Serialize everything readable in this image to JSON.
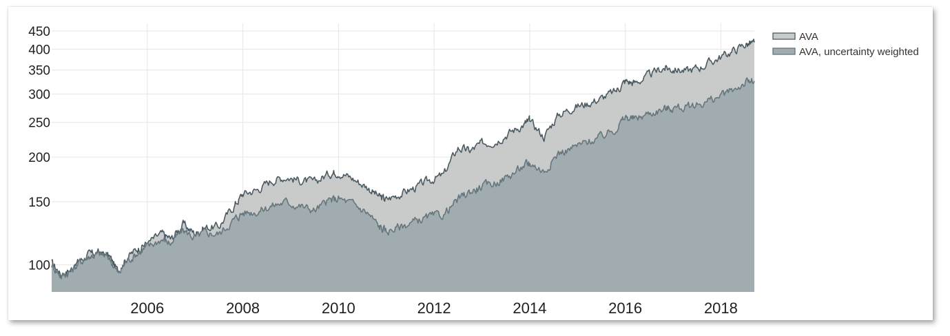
{
  "colors": {
    "ava_fill": "#c9cbcb",
    "ava_line": "#4b5a62",
    "weighted_fill": "#a1acb0",
    "weighted_line": "#66767d",
    "grid": "#e6e6e6"
  },
  "chart_data": {
    "type": "area",
    "title": "",
    "xlabel": "",
    "ylabel": "",
    "y_scale": "log",
    "ylim": [
      84,
      460
    ],
    "xlim": [
      2004.0,
      2018.7
    ],
    "x_ticks": [
      2006,
      2008,
      2010,
      2012,
      2014,
      2016,
      2018
    ],
    "x_tick_labels": [
      "2006",
      "2008",
      "2010",
      "2012",
      "2014",
      "2016",
      "2018"
    ],
    "y_ticks": [
      100,
      150,
      200,
      250,
      300,
      350,
      400,
      450
    ],
    "y_tick_labels": [
      "100",
      "150",
      "200",
      "250",
      "300",
      "350",
      "400",
      "450"
    ],
    "grid": true,
    "legend_position": "right",
    "series": [
      {
        "name": "AVA",
        "x": [
          2004.0,
          2004.2,
          2004.4,
          2004.6,
          2004.8,
          2005.0,
          2005.2,
          2005.4,
          2005.55,
          2005.8,
          2006.0,
          2006.3,
          2006.5,
          2006.75,
          2007.0,
          2007.2,
          2007.5,
          2007.8,
          2008.0,
          2008.3,
          2008.6,
          2008.9,
          2009.2,
          2009.5,
          2009.8,
          2010.0,
          2010.3,
          2010.6,
          2010.85,
          2011.0,
          2011.3,
          2011.6,
          2011.9,
          2012.2,
          2012.5,
          2012.75,
          2013.0,
          2013.3,
          2013.6,
          2013.9,
          2014.0,
          2014.3,
          2014.6,
          2014.9,
          2015.2,
          2015.5,
          2015.8,
          2016.0,
          2016.2,
          2016.5,
          2016.8,
          2017.0,
          2017.3,
          2017.6,
          2017.9,
          2018.2,
          2018.5,
          2018.7
        ],
        "values": [
          101,
          94,
          97,
          103,
          107,
          108,
          106,
          95,
          104,
          111,
          115,
          122,
          118,
          130,
          122,
          127,
          128,
          145,
          158,
          162,
          172,
          176,
          172,
          170,
          180,
          182,
          174,
          165,
          155,
          152,
          158,
          164,
          172,
          178,
          212,
          208,
          218,
          222,
          235,
          248,
          252,
          228,
          262,
          275,
          282,
          292,
          305,
          326,
          322,
          338,
          355,
          352,
          348,
          358,
          375,
          392,
          412,
          418
        ]
      },
      {
        "name": "AVA, uncertainty weighted",
        "x": [
          2004.0,
          2004.2,
          2004.4,
          2004.6,
          2004.8,
          2005.0,
          2005.2,
          2005.4,
          2005.55,
          2005.8,
          2006.0,
          2006.3,
          2006.5,
          2006.75,
          2007.0,
          2007.2,
          2007.5,
          2007.8,
          2008.0,
          2008.3,
          2008.6,
          2008.9,
          2009.2,
          2009.5,
          2009.8,
          2010.0,
          2010.3,
          2010.6,
          2010.85,
          2011.0,
          2011.3,
          2011.6,
          2011.9,
          2012.2,
          2012.5,
          2012.75,
          2013.0,
          2013.3,
          2013.6,
          2013.9,
          2014.0,
          2014.3,
          2014.6,
          2014.9,
          2015.2,
          2015.5,
          2015.8,
          2016.0,
          2016.2,
          2016.5,
          2016.8,
          2017.0,
          2017.3,
          2017.6,
          2017.9,
          2018.2,
          2018.5,
          2018.7
        ],
        "values": [
          100,
          93,
          96,
          102,
          106,
          107,
          105,
          94,
          102,
          108,
          112,
          118,
          115,
          125,
          119,
          123,
          122,
          133,
          140,
          141,
          146,
          150,
          146,
          142,
          151,
          153,
          148,
          140,
          128,
          124,
          128,
          132,
          136,
          138,
          152,
          160,
          165,
          170,
          178,
          190,
          193,
          182,
          205,
          212,
          220,
          228,
          240,
          258,
          255,
          265,
          272,
          275,
          275,
          283,
          292,
          305,
          322,
          326
        ]
      }
    ]
  }
}
